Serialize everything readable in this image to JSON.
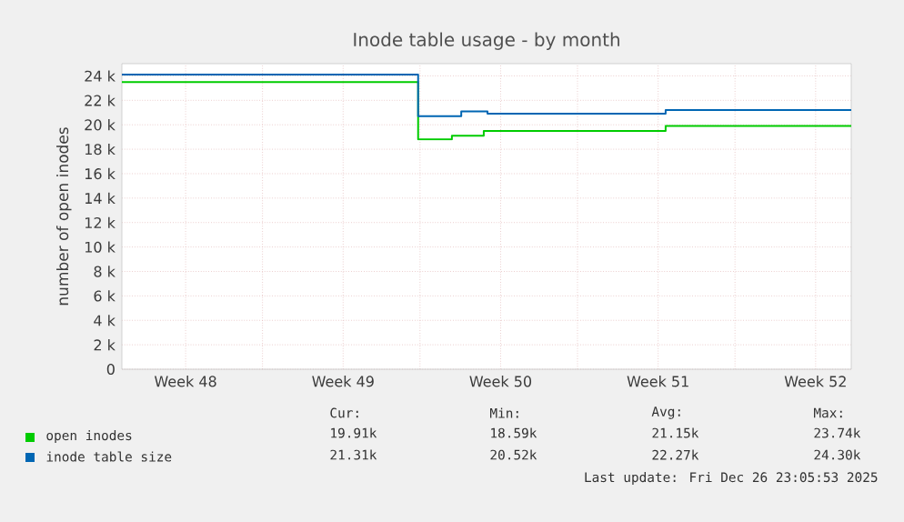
{
  "chart_data": {
    "type": "step",
    "title": "Inode table usage - by month",
    "ylabel": "number of open inodes",
    "xlim": [
      "2025-11-24T18:00",
      "2025-12-27T04:00"
    ],
    "ylim": [
      0,
      25
    ],
    "xticks": [
      {
        "value": "2025-11-27T14:00",
        "label": "Week 48"
      },
      {
        "value": "2025-12-01T00:00",
        "label": null
      },
      {
        "value": "2025-12-04T14:00",
        "label": "Week 49"
      },
      {
        "value": "2025-12-08T00:00",
        "label": null
      },
      {
        "value": "2025-12-11T14:00",
        "label": "Week 50"
      },
      {
        "value": "2025-12-15T00:00",
        "label": null
      },
      {
        "value": "2025-12-18T14:00",
        "label": "Week 51"
      },
      {
        "value": "2025-12-22T00:00",
        "label": null
      },
      {
        "value": "2025-12-25T14:00",
        "label": "Week 52"
      }
    ],
    "yticks": [
      0,
      {
        "value": 2,
        "label": "2 k"
      },
      {
        "value": 4,
        "label": "4 k"
      },
      {
        "value": 6,
        "label": "6 k"
      },
      {
        "value": 8,
        "label": "8 k"
      },
      {
        "value": 10,
        "label": "10 k"
      },
      {
        "value": 12,
        "label": "12 k"
      },
      {
        "value": 14,
        "label": "14 k"
      },
      {
        "value": 16,
        "label": "16 k"
      },
      {
        "value": 18,
        "label": "18 k"
      },
      {
        "value": 20,
        "label": "20 k"
      },
      {
        "value": 22,
        "label": "22 k"
      },
      {
        "value": 24,
        "label": "24 k"
      }
    ],
    "grid": true,
    "legend": "bottom",
    "series": [
      {
        "name": "open inodes",
        "color": "#00cc00",
        "x": [
          "2025-11-24T18:00",
          "2025-12-07T22:00",
          "2025-12-09T10:00",
          "2025-12-10T20:00",
          "2025-12-18T22:00",
          "2025-12-27T04:00"
        ],
        "values": [
          23.5,
          18.8,
          19.1,
          19.5,
          19.9,
          19.9
        ]
      },
      {
        "name": "inode table size",
        "color": "#0066b3",
        "x": [
          "2025-11-24T18:00",
          "2025-12-07T22:00",
          "2025-12-09T20:00",
          "2025-12-11T00:00",
          "2025-12-18T22:00",
          "2025-12-27T04:00"
        ],
        "values": [
          24.1,
          20.7,
          21.1,
          20.9,
          21.2,
          21.2
        ]
      }
    ],
    "annotations": [
      "Cur:",
      "Min:",
      "Avg:",
      "Max:",
      "19.91k",
      "18.59k",
      "21.15k",
      "23.74k",
      "21.31k",
      "20.52k",
      "22.27k",
      "24.30k",
      "Last update: Fri Dec 26 23:05:53 2025"
    ]
  }
}
